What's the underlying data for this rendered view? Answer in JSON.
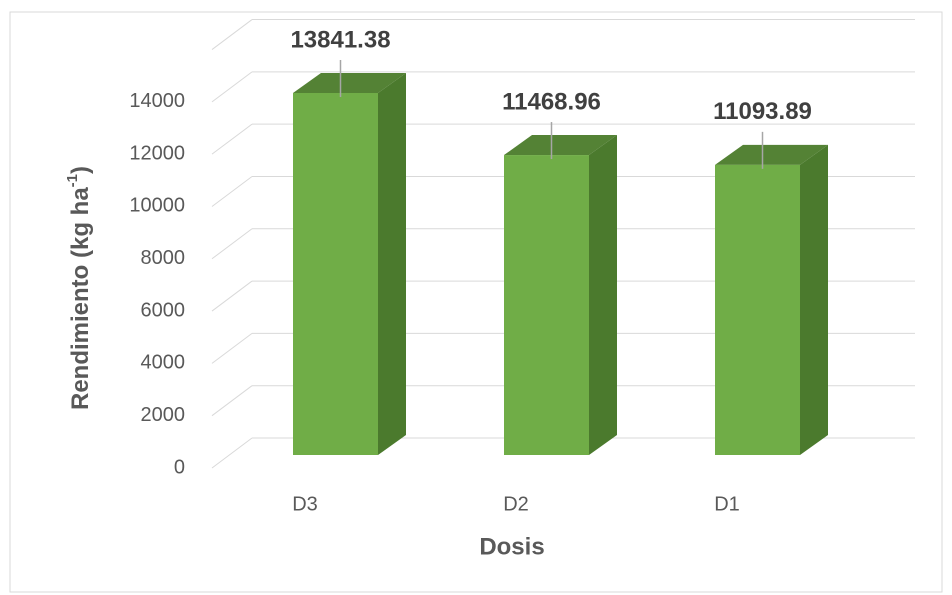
{
  "chart_data": {
    "type": "bar3d",
    "ylabel": {
      "text": "Rendimiento (kg ha",
      "sup": "-1",
      "end": ")"
    },
    "xlabel": "Dosis",
    "categories": [
      "D3",
      "D2",
      "D1"
    ],
    "values": [
      13841.38,
      11468.96,
      11093.89
    ],
    "color": "#70ad47",
    "side_color": "#4b7a2d",
    "top_color": "#548235",
    "ylim": [
      0,
      16000
    ],
    "yticks": [
      0,
      2000,
      4000,
      6000,
      8000,
      10000,
      12000,
      14000
    ],
    "grid": true
  }
}
